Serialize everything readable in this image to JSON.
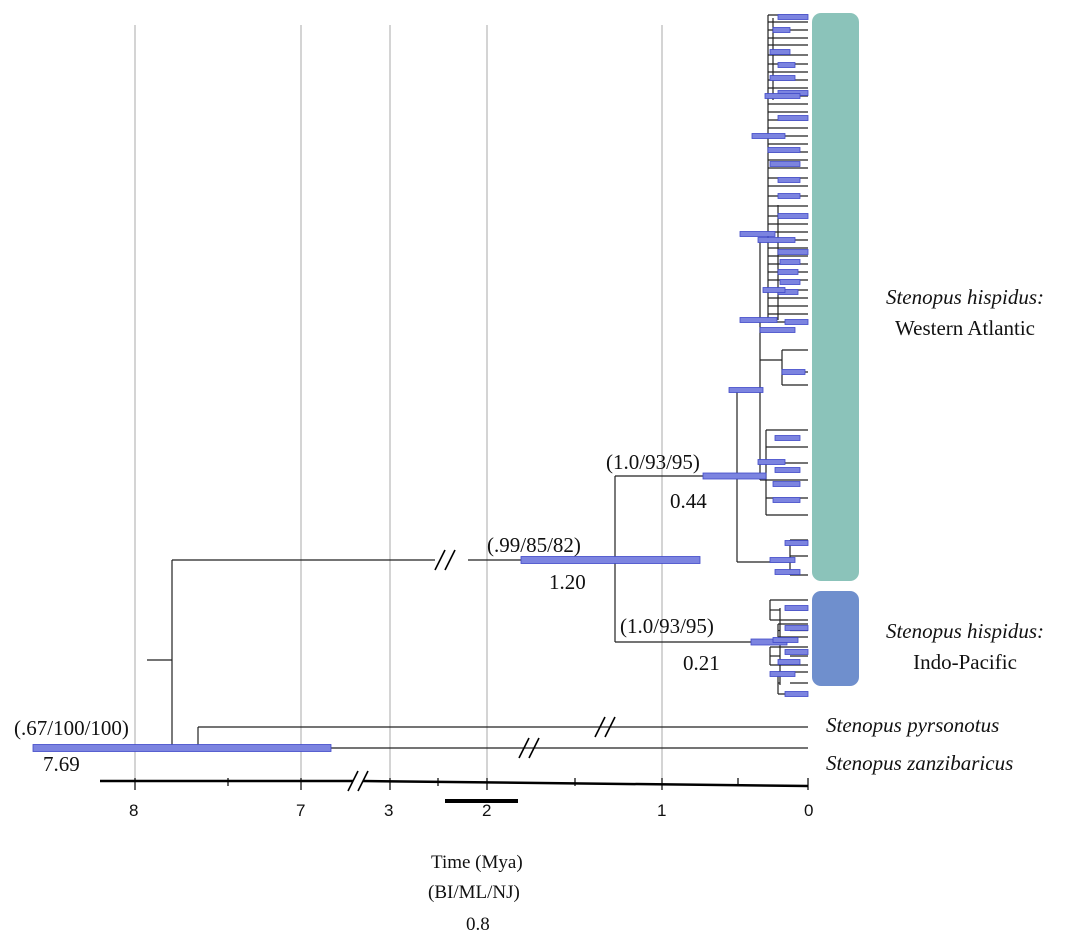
{
  "clades": {
    "western_atlantic": {
      "species": "Stenopus hispidus:",
      "region": "Western Atlantic",
      "color": "#8bc3ba"
    },
    "indo_pacific": {
      "species": "Stenopus hispidus:",
      "region": "Indo-Pacific",
      "color": "#6f8fcd"
    }
  },
  "tips": {
    "pyrsonotus": "Stenopus pyrsonotus",
    "zanzibaricus": "Stenopus zanzibaricus"
  },
  "nodes": {
    "root": {
      "support": "(.67/100/100)",
      "age": "7.69"
    },
    "hispidus": {
      "support": "(.99/85/82)",
      "age": "1.20"
    },
    "western_atlantic": {
      "support": "(1.0/93/95)",
      "age": "0.44"
    },
    "indo_pacific": {
      "support": "(1.0/93/95)",
      "age": "0.21"
    }
  },
  "axis": {
    "ticks": [
      "8",
      "7",
      "3",
      "2",
      "1",
      "0"
    ],
    "title": "Time (Mya)",
    "scale_legend": "(BI/ML/NJ)",
    "scale_value": "0.8"
  },
  "colors": {
    "hpd_bar": "#7c84e0",
    "hpd_bar_edge": "#3f49c8",
    "grid": "#d4d4d4",
    "branch": "#222222"
  }
}
